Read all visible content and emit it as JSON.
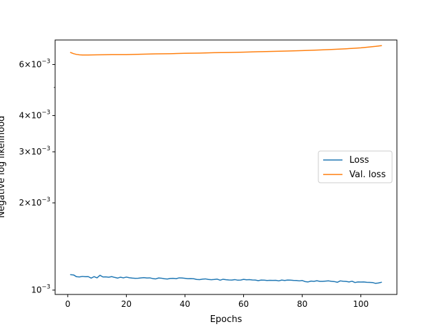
{
  "chart_data": {
    "type": "line",
    "title": "",
    "xlabel": "Epochs",
    "ylabel": "Negative log likelihood",
    "yscale": "log",
    "xlim": [
      -4.3,
      112.3
    ],
    "ylim": [
      0.000966,
      0.00729
    ],
    "xticks": [
      0,
      20,
      40,
      60,
      80,
      100
    ],
    "xtick_labels": [
      "0",
      "20",
      "40",
      "60",
      "80",
      "100"
    ],
    "yticks": [
      0.001,
      0.002,
      0.003,
      0.004,
      0.006
    ],
    "ytick_labels": [
      {
        "base": "10",
        "exp": "−3"
      },
      {
        "base": "2×10",
        "exp": "−3"
      },
      {
        "base": "3×10",
        "exp": "−3"
      },
      {
        "base": "4×10",
        "exp": "−3"
      },
      {
        "base": "6×10",
        "exp": "−3"
      }
    ],
    "grid": false,
    "legend_position": "center-right",
    "series": [
      {
        "name": "Loss",
        "color": "#1f77b4",
        "x": [
          1,
          2,
          3,
          4,
          5,
          6,
          7,
          8,
          9,
          10,
          11,
          12,
          13,
          14,
          15,
          16,
          17,
          18,
          19,
          20,
          21,
          22,
          23,
          24,
          25,
          26,
          27,
          28,
          29,
          30,
          31,
          32,
          33,
          34,
          35,
          36,
          37,
          38,
          39,
          40,
          41,
          42,
          43,
          44,
          45,
          46,
          47,
          48,
          49,
          50,
          51,
          52,
          53,
          54,
          55,
          56,
          57,
          58,
          59,
          60,
          61,
          62,
          63,
          64,
          65,
          66,
          67,
          68,
          69,
          70,
          71,
          72,
          73,
          74,
          75,
          76,
          77,
          78,
          79,
          80,
          81,
          82,
          83,
          84,
          85,
          86,
          87,
          88,
          89,
          90,
          91,
          92,
          93,
          94,
          95,
          96,
          97,
          98,
          99,
          100,
          101,
          102,
          103,
          104,
          105,
          106,
          107
        ],
        "values": [
          0.00113,
          0.001128,
          0.001112,
          0.00111,
          0.001115,
          0.001112,
          0.001113,
          0.0011,
          0.001113,
          0.001102,
          0.001125,
          0.00111,
          0.001111,
          0.001108,
          0.001113,
          0.001106,
          0.0011,
          0.001108,
          0.001102,
          0.001109,
          0.001103,
          0.0011,
          0.001098,
          0.001099,
          0.001102,
          0.001104,
          0.001101,
          0.001102,
          0.001096,
          0.001093,
          0.001101,
          0.001099,
          0.001094,
          0.001092,
          0.001097,
          0.001098,
          0.001095,
          0.001102,
          0.001101,
          0.001098,
          0.001095,
          0.001096,
          0.001094,
          0.001088,
          0.001087,
          0.001091,
          0.001093,
          0.001088,
          0.001086,
          0.001088,
          0.001091,
          0.001082,
          0.00109,
          0.001086,
          0.001084,
          0.001083,
          0.001087,
          0.001082,
          0.001083,
          0.001089,
          0.001085,
          0.001087,
          0.001084,
          0.001083,
          0.001078,
          0.001083,
          0.001082,
          0.001079,
          0.001081,
          0.00108,
          0.001081,
          0.001076,
          0.001083,
          0.001079,
          0.001083,
          0.001082,
          0.00108,
          0.001079,
          0.001076,
          0.001079,
          0.00107,
          0.001067,
          0.001074,
          0.001072,
          0.001077,
          0.001072,
          0.001072,
          0.001074,
          0.001076,
          0.001072,
          0.00107,
          0.001064,
          0.001076,
          0.001073,
          0.001071,
          0.001067,
          0.001073,
          0.001062,
          0.001067,
          0.001066,
          0.001067,
          0.001064,
          0.001063,
          0.001062,
          0.001055,
          0.001058,
          0.001064
        ]
      },
      {
        "name": "Val. loss",
        "color": "#ff7f0e",
        "x": [
          1,
          2,
          3,
          4,
          5,
          6,
          7,
          10,
          15,
          20,
          25,
          30,
          35,
          40,
          45,
          50,
          55,
          60,
          65,
          70,
          75,
          80,
          85,
          90,
          95,
          100,
          105,
          107
        ],
        "values": [
          0.0066,
          0.00654,
          0.0065,
          0.00648,
          0.00647,
          0.00647,
          0.00647,
          0.00648,
          0.00649,
          0.00649,
          0.00651,
          0.00653,
          0.00654,
          0.00656,
          0.00657,
          0.00659,
          0.0066,
          0.00662,
          0.00664,
          0.00666,
          0.00668,
          0.0067,
          0.00673,
          0.00676,
          0.0068,
          0.00685,
          0.00693,
          0.00697
        ]
      }
    ]
  }
}
